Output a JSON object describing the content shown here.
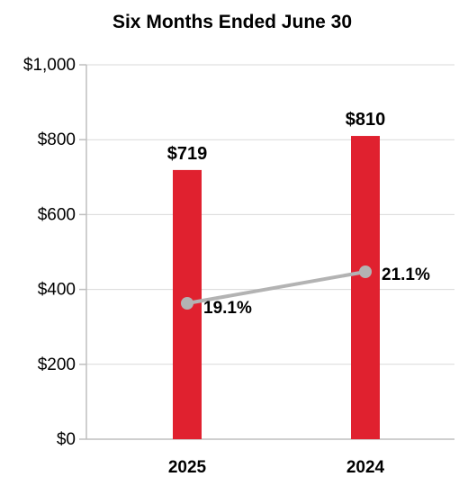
{
  "chart_data": {
    "type": "bar",
    "title": "Six Months Ended June 30",
    "categories": [
      "2025",
      "2024"
    ],
    "values": [
      719,
      810
    ],
    "value_labels": [
      "$719",
      "$810"
    ],
    "ylim": [
      0,
      1000
    ],
    "yticks": [
      0,
      200,
      400,
      600,
      800,
      1000
    ],
    "ytick_labels": [
      "$0",
      "$200",
      "$400",
      "$600",
      "$800",
      "$1,000"
    ],
    "grid": true,
    "bar_color": "#e0212f",
    "overlay_line": {
      "type": "line",
      "values_pct": [
        19.1,
        21.1
      ],
      "labels": [
        "19.1%",
        "21.1%"
      ],
      "color": "#b3b3b3"
    }
  }
}
